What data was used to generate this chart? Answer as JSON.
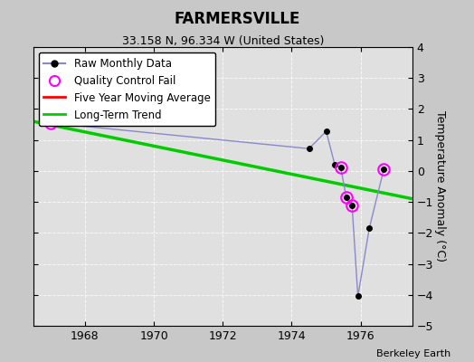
{
  "title": "FARMERSVILLE",
  "subtitle": "33.158 N, 96.334 W (United States)",
  "credit": "Berkeley Earth",
  "ylabel": "Temperature Anomaly (°C)",
  "ylim": [
    -5,
    4
  ],
  "xlim": [
    1966.5,
    1977.5
  ],
  "yticks": [
    -5,
    -4,
    -3,
    -2,
    -1,
    0,
    1,
    2,
    3,
    4
  ],
  "xticks": [
    1968,
    1970,
    1972,
    1974,
    1976
  ],
  "background_color": "#c8c8c8",
  "plot_bg_color": "#e0e0e0",
  "raw_data": {
    "x": [
      1967.0,
      1974.5,
      1975.0,
      1975.25,
      1975.42,
      1975.58,
      1975.75,
      1975.92,
      1976.25,
      1976.67
    ],
    "y": [
      1.55,
      0.72,
      1.28,
      0.2,
      0.12,
      -0.85,
      -1.12,
      -4.05,
      -1.85,
      0.05
    ],
    "markersize": 4,
    "linecolor": "#8888cc",
    "linewidth": 1.0
  },
  "line_segments": [
    {
      "x": [
        1975.0,
        1975.25,
        1975.42,
        1975.58,
        1975.75,
        1975.92
      ],
      "y": [
        1.28,
        0.2,
        0.12,
        -0.85,
        -1.12,
        -4.05
      ]
    },
    {
      "x": [
        1976.25,
        1975.58
      ],
      "y": [
        -1.85,
        -0.85
      ]
    },
    {
      "x": [
        1976.25,
        1975.75
      ],
      "y": [
        -1.85,
        -1.12
      ]
    }
  ],
  "qc_fail": {
    "x": [
      1967.0,
      1975.42,
      1975.58,
      1975.75,
      1976.67
    ],
    "y": [
      1.55,
      0.12,
      -0.85,
      -1.12,
      0.05
    ],
    "color": "magenta",
    "markersize": 9,
    "linewidth": 1.5
  },
  "trend": {
    "x": [
      1966.5,
      1977.5
    ],
    "y": [
      1.6,
      -0.9
    ],
    "color": "#00cc00",
    "linewidth": 2.5
  },
  "moving_avg": {
    "color": "red",
    "linewidth": 2
  },
  "legend": {
    "raw_label": "Raw Monthly Data",
    "qc_label": "Quality Control Fail",
    "ma_label": "Five Year Moving Average",
    "trend_label": "Long-Term Trend"
  }
}
